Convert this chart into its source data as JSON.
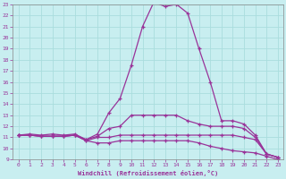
{
  "xlabel": "Windchill (Refroidissement éolien,°C)",
  "ylabel": "",
  "bg_color": "#c8eef0",
  "line_color": "#993399",
  "grid_color": "#aadddd",
  "xlim": [
    -0.5,
    23.5
  ],
  "ylim": [
    9,
    23
  ],
  "xticks": [
    0,
    1,
    2,
    3,
    4,
    5,
    6,
    7,
    8,
    9,
    10,
    11,
    12,
    13,
    14,
    15,
    16,
    17,
    18,
    19,
    20,
    21,
    22,
    23
  ],
  "yticks": [
    9,
    10,
    11,
    12,
    13,
    14,
    15,
    16,
    17,
    18,
    19,
    20,
    21,
    22,
    23
  ],
  "series": [
    [
      11.2,
      11.3,
      11.2,
      11.3,
      11.2,
      11.3,
      10.8,
      11.3,
      13.2,
      14.5,
      17.5,
      21.0,
      23.2,
      22.8,
      23.0,
      22.2,
      19.0,
      16.0,
      12.5,
      12.5,
      12.2,
      11.2,
      9.5,
      9.2
    ],
    [
      11.2,
      11.2,
      11.1,
      11.1,
      11.1,
      11.2,
      10.8,
      11.1,
      11.8,
      12.0,
      13.0,
      13.0,
      13.0,
      13.0,
      13.0,
      12.5,
      12.2,
      12.0,
      12.0,
      12.0,
      11.8,
      11.0,
      9.5,
      9.2
    ],
    [
      11.2,
      11.2,
      11.1,
      11.1,
      11.1,
      11.2,
      10.7,
      11.0,
      11.0,
      11.2,
      11.2,
      11.2,
      11.2,
      11.2,
      11.2,
      11.2,
      11.2,
      11.2,
      11.2,
      11.2,
      11.0,
      10.8,
      9.5,
      9.2
    ],
    [
      11.2,
      11.2,
      11.1,
      11.1,
      11.1,
      11.2,
      10.7,
      10.5,
      10.5,
      10.7,
      10.7,
      10.7,
      10.7,
      10.7,
      10.7,
      10.7,
      10.5,
      10.2,
      10.0,
      9.8,
      9.7,
      9.6,
      9.3,
      9.0
    ]
  ]
}
